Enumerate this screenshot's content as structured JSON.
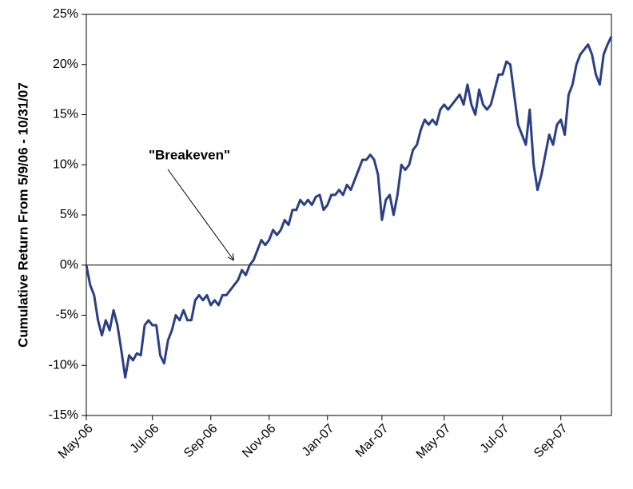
{
  "chart_data": {
    "type": "line",
    "y_label": "Cumulative Return From 5/9/06 - 10/31/07",
    "annotation": "\"Breakeven\"",
    "categories": [
      "May-06",
      null,
      null,
      null,
      null,
      null,
      null,
      null,
      null,
      null,
      null,
      null,
      null,
      null,
      null,
      null,
      null,
      "Jul-06",
      null,
      null,
      null,
      null,
      null,
      null,
      null,
      null,
      null,
      null,
      null,
      null,
      null,
      null,
      "Sep-06",
      null,
      null,
      null,
      null,
      null,
      null,
      null,
      null,
      null,
      null,
      null,
      null,
      null,
      null,
      "Nov-06",
      null,
      null,
      null,
      null,
      null,
      null,
      null,
      null,
      null,
      null,
      null,
      null,
      null,
      null,
      "Jan-07",
      null,
      null,
      null,
      null,
      null,
      null,
      null,
      null,
      null,
      null,
      null,
      null,
      null,
      "Mar-07",
      null,
      null,
      null,
      null,
      null,
      null,
      null,
      null,
      null,
      null,
      null,
      null,
      null,
      null,
      null,
      "May-07",
      null,
      null,
      null,
      null,
      null,
      null,
      null,
      null,
      null,
      null,
      null,
      null,
      null,
      null,
      "Jul-07",
      null,
      null,
      null,
      null,
      null,
      null,
      null,
      null,
      null,
      null,
      null,
      null,
      null,
      null,
      "Sep-07",
      null,
      null,
      null,
      null,
      null,
      null,
      null,
      null,
      null,
      null,
      null,
      null,
      null
    ],
    "series": [
      {
        "color": "#2b3f86",
        "values": [
          0,
          -2,
          -3,
          -5.5,
          -7,
          -5.5,
          -6.5,
          -4.5,
          -6,
          -8.5,
          -11.2,
          -9,
          -9.5,
          -8.8,
          -9,
          -6,
          -5.5,
          -6,
          -6,
          -9,
          -9.8,
          -7.5,
          -6.5,
          -5,
          -5.5,
          -4.5,
          -5.5,
          -5.5,
          -3.5,
          -3,
          -3.5,
          -3,
          -4,
          -3.5,
          -4,
          -3,
          -3,
          -2.5,
          -2,
          -1.5,
          -0.5,
          -1,
          0,
          0.5,
          1.5,
          2.5,
          2,
          2.5,
          3.5,
          3,
          3.5,
          4.5,
          4,
          5.5,
          5.5,
          6.5,
          6,
          6.5,
          6,
          6.8,
          7,
          5.5,
          6,
          7,
          7,
          7.5,
          7,
          8,
          7.5,
          8.5,
          9.5,
          10.5,
          10.5,
          11,
          10.5,
          9,
          4.5,
          6.5,
          7,
          5,
          7,
          10,
          9.5,
          10,
          11.5,
          12,
          13.5,
          14.5,
          14,
          14.5,
          14,
          15.5,
          16,
          15.5,
          16,
          16.5,
          17,
          16,
          18,
          16,
          15,
          17.5,
          16,
          15.5,
          16,
          17.5,
          19,
          19,
          20.3,
          20,
          17,
          14,
          13,
          12,
          15.5,
          10,
          7.5,
          9,
          11,
          13,
          12,
          14,
          14.5,
          13,
          17,
          18,
          20,
          21,
          21.5,
          22,
          21,
          19,
          18,
          21,
          22,
          22.8
        ]
      }
    ],
    "ylim": [
      -15,
      25
    ],
    "yticks": [
      {
        "value": -15,
        "label": "-15%"
      },
      {
        "value": -10,
        "label": "-10%"
      },
      {
        "value": -5,
        "label": "-5%"
      },
      {
        "value": 0,
        "label": "0%"
      },
      {
        "value": 5,
        "label": "5%"
      },
      {
        "value": 10,
        "label": "10%"
      },
      {
        "value": 15,
        "label": "15%"
      },
      {
        "value": 20,
        "label": "20%"
      },
      {
        "value": 25,
        "label": "25%"
      }
    ],
    "line_width": 3
  }
}
